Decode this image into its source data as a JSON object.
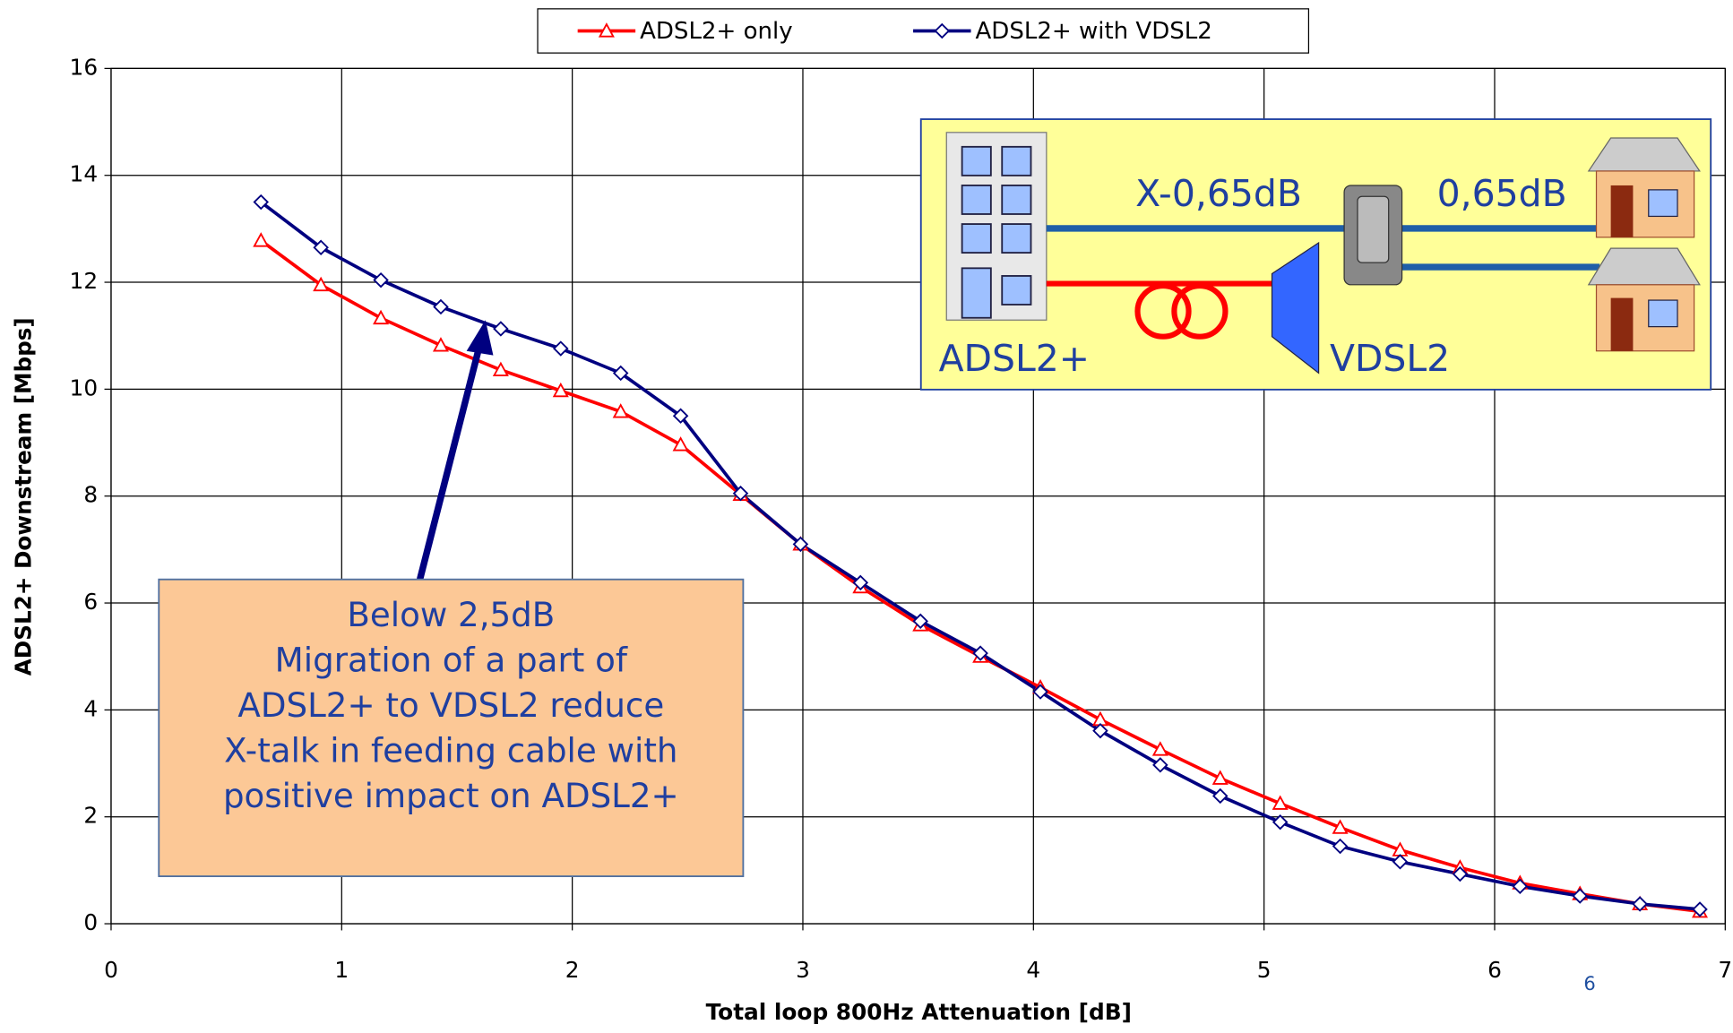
{
  "chart_data": {
    "type": "line",
    "x_label": "Total loop 800Hz Attenuation [dB]",
    "y_label": "ADSL2+ Downstream [Mbps]",
    "x": [
      0.65,
      0.91,
      1.17,
      1.43,
      1.69,
      1.95,
      2.21,
      2.47,
      2.73,
      2.99,
      3.25,
      3.51,
      3.77,
      4.03,
      4.29,
      4.55,
      4.81,
      5.07,
      5.33,
      5.59,
      5.85,
      6.11,
      6.37,
      6.63,
      6.89
    ],
    "series": [
      {
        "name": "ADSL2+ only",
        "color": "#ff0000",
        "marker": "triangle",
        "values": [
          12.78,
          11.95,
          11.33,
          10.82,
          10.36,
          9.97,
          9.58,
          8.96,
          8.03,
          7.1,
          6.3,
          5.59,
          5.0,
          4.42,
          3.82,
          3.26,
          2.72,
          2.25,
          1.8,
          1.38,
          1.05,
          0.76,
          0.56,
          0.37,
          0.23
        ]
      },
      {
        "name": "ADSL2+ with VDSL2",
        "color": "#000080",
        "marker": "diamond",
        "values": [
          13.5,
          12.65,
          12.04,
          11.54,
          11.13,
          10.76,
          10.3,
          9.5,
          8.05,
          7.1,
          6.38,
          5.66,
          5.06,
          4.34,
          3.61,
          2.97,
          2.39,
          1.9,
          1.45,
          1.16,
          0.93,
          0.7,
          0.52,
          0.37,
          0.27
        ]
      }
    ],
    "xlim": [
      0,
      7
    ],
    "xticks": [
      0,
      1,
      2,
      3,
      4,
      5,
      6,
      7
    ],
    "ylim": [
      0,
      16
    ],
    "yticks": [
      0,
      2,
      4,
      6,
      8,
      10,
      12,
      14,
      16
    ],
    "grid": true,
    "legend": "top",
    "annotations": {
      "callout": [
        "Below 2,5dB",
        "Migration of a part of",
        "ADSL2+ to VDSL2 reduce",
        "X-talk in feeding cable with",
        "positive impact on ADSL2+"
      ],
      "inset": {
        "left_span": "X-0,65dB",
        "right_span": "0,65dB",
        "central_office": "ADSL2+",
        "cabinet": "VDSL2"
      }
    }
  },
  "page_number": "6"
}
